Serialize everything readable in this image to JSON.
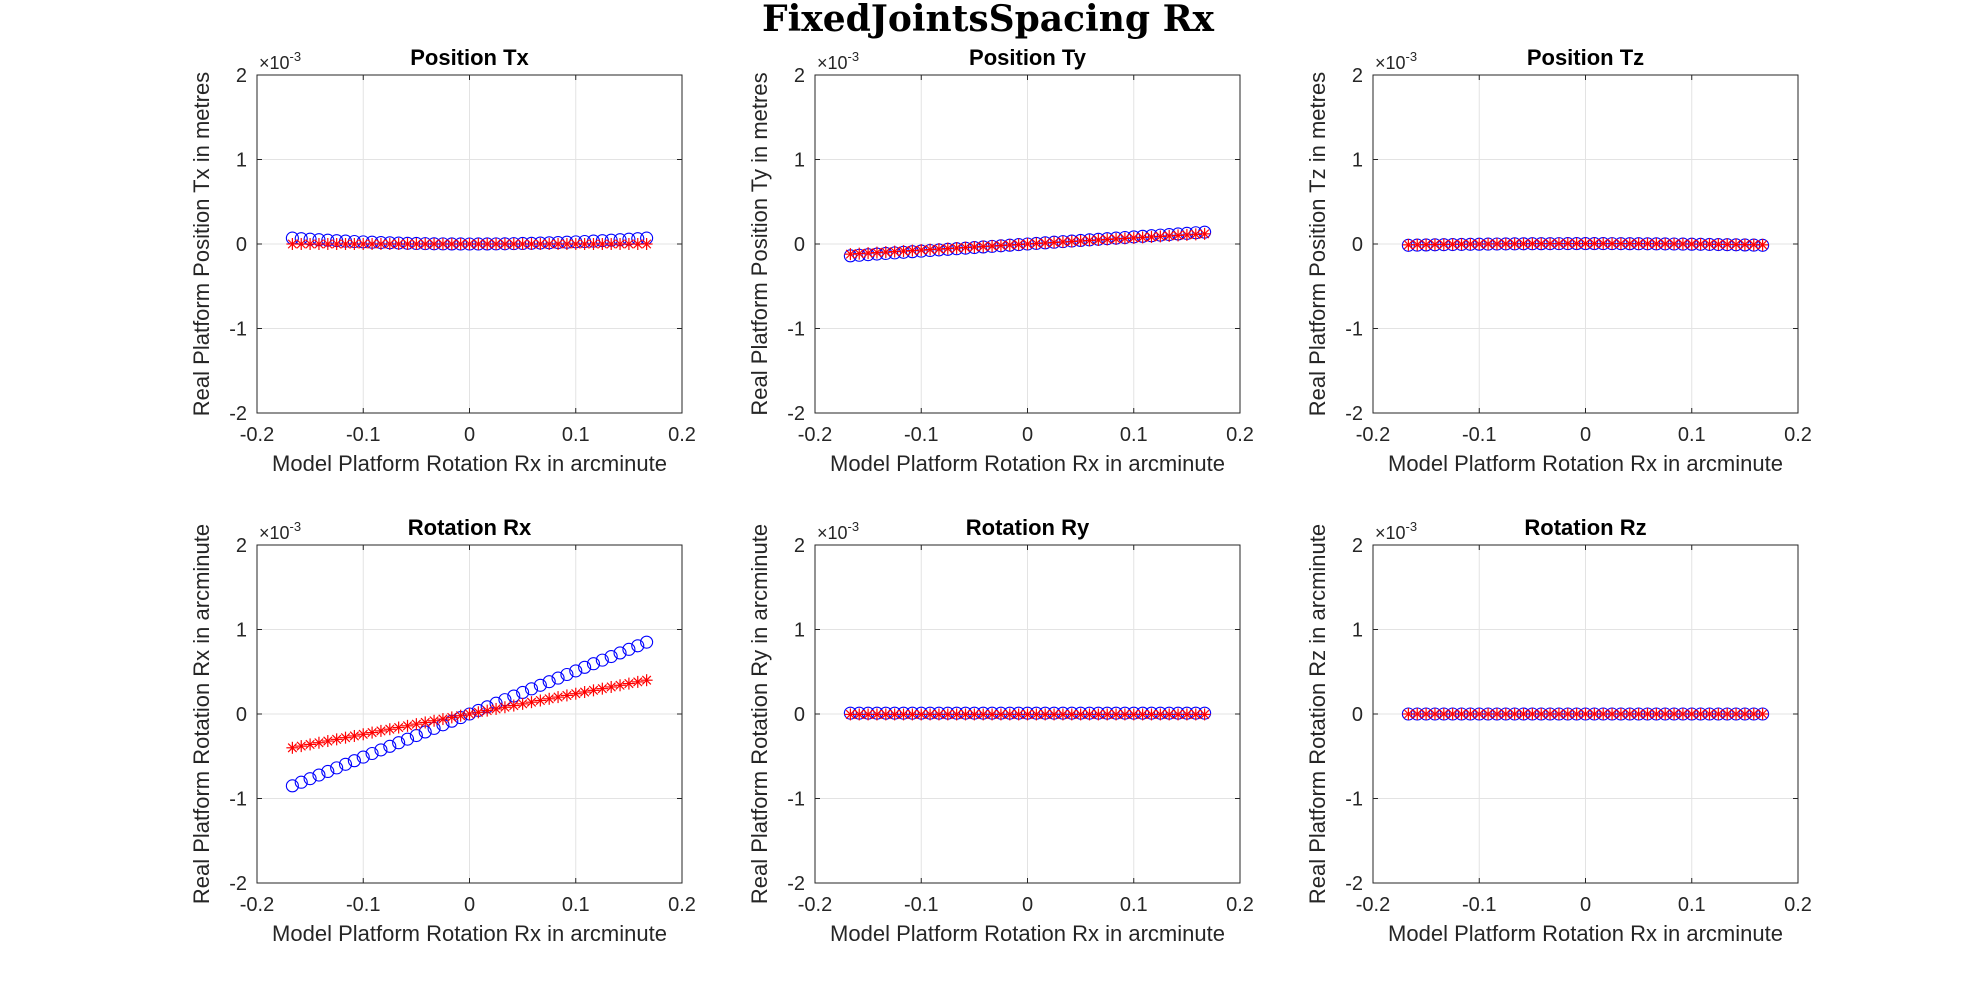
{
  "figure": {
    "title": "FixedJointsSpacing Rx"
  },
  "colors": {
    "model": "#0000ff",
    "real": "#ff0000",
    "grid": "#e3e3e3",
    "axis": "#262626"
  },
  "chart_data": [
    {
      "type": "scatter",
      "title": "Position Tx",
      "xlabel": "Model Platform Rotation Rx in arcminute",
      "ylabel": "Real Platform Position Tx in metres",
      "xlim": [
        -0.2,
        0.2
      ],
      "ylim": [
        -2,
        2
      ],
      "y_exponent": "-3",
      "xticks": [
        "-0.2",
        "-0.1",
        "0",
        "0.1",
        "0.2"
      ],
      "yticks": [
        "-2",
        "-1",
        "0",
        "1",
        "2"
      ],
      "grid": true,
      "x_range": [
        -0.1667,
        0.1667
      ],
      "points": 41,
      "series": [
        {
          "marker": "circle",
          "color": "#0000ff",
          "shape": "quadratic",
          "at_zero": 0,
          "at_end": 0.07
        },
        {
          "marker": "asterisk",
          "color": "#ff0000",
          "shape": "constant",
          "value": 0
        }
      ]
    },
    {
      "type": "scatter",
      "title": "Position Ty",
      "xlabel": "Model Platform Rotation Rx in arcminute",
      "ylabel": "Real Platform Position Ty in metres",
      "xlim": [
        -0.2,
        0.2
      ],
      "ylim": [
        -2,
        2
      ],
      "y_exponent": "-3",
      "xticks": [
        "-0.2",
        "-0.1",
        "0",
        "0.1",
        "0.2"
      ],
      "yticks": [
        "-2",
        "-1",
        "0",
        "1",
        "2"
      ],
      "grid": true,
      "x_range": [
        -0.1667,
        0.1667
      ],
      "points": 41,
      "series": [
        {
          "marker": "circle",
          "color": "#0000ff",
          "shape": "linear",
          "at_zero": 0,
          "at_end": 0.14
        },
        {
          "marker": "asterisk",
          "color": "#ff0000",
          "shape": "linear",
          "at_zero": 0,
          "at_end": 0.12
        }
      ]
    },
    {
      "type": "scatter",
      "title": "Position Tz",
      "xlabel": "Model Platform Rotation Rx in arcminute",
      "ylabel": "Real Platform Position Tz in metres",
      "xlim": [
        -0.2,
        0.2
      ],
      "ylim": [
        -2,
        2
      ],
      "y_exponent": "-3",
      "xticks": [
        "-0.2",
        "-0.1",
        "0",
        "0.1",
        "0.2"
      ],
      "yticks": [
        "-2",
        "-1",
        "0",
        "1",
        "2"
      ],
      "grid": true,
      "x_range": [
        -0.1667,
        0.1667
      ],
      "points": 41,
      "series": [
        {
          "marker": "circle",
          "color": "#0000ff",
          "shape": "quadratic",
          "at_zero": 0.005,
          "at_end": -0.015
        },
        {
          "marker": "asterisk",
          "color": "#ff0000",
          "shape": "quadratic",
          "at_zero": 0.005,
          "at_end": -0.01
        }
      ]
    },
    {
      "type": "scatter",
      "title": "Rotation Rx",
      "xlabel": "Model Platform Rotation Rx in arcminute",
      "ylabel": "Real Platform Rotation Rx in arcminute",
      "xlim": [
        -0.2,
        0.2
      ],
      "ylim": [
        -2,
        2
      ],
      "y_exponent": "-3",
      "xticks": [
        "-0.2",
        "-0.1",
        "0",
        "0.1",
        "0.2"
      ],
      "yticks": [
        "-2",
        "-1",
        "0",
        "1",
        "2"
      ],
      "grid": true,
      "x_range": [
        -0.1667,
        0.1667
      ],
      "points": 41,
      "series": [
        {
          "marker": "circle",
          "color": "#0000ff",
          "shape": "linear",
          "at_zero": 0,
          "at_end": 0.85
        },
        {
          "marker": "asterisk",
          "color": "#ff0000",
          "shape": "linear",
          "at_zero": 0,
          "at_end": 0.4
        }
      ]
    },
    {
      "type": "scatter",
      "title": "Rotation Ry",
      "xlabel": "Model Platform Rotation Rx in arcminute",
      "ylabel": "Real Platform Rotation Ry in arcminute",
      "xlim": [
        -0.2,
        0.2
      ],
      "ylim": [
        -2,
        2
      ],
      "y_exponent": "-3",
      "xticks": [
        "-0.2",
        "-0.1",
        "0",
        "0.1",
        "0.2"
      ],
      "yticks": [
        "-2",
        "-1",
        "0",
        "1",
        "2"
      ],
      "grid": true,
      "x_range": [
        -0.1667,
        0.1667
      ],
      "points": 41,
      "series": [
        {
          "marker": "circle",
          "color": "#0000ff",
          "shape": "constant",
          "value": 0.01
        },
        {
          "marker": "asterisk",
          "color": "#ff0000",
          "shape": "constant",
          "value": -0.005
        }
      ]
    },
    {
      "type": "scatter",
      "title": "Rotation Rz",
      "xlabel": "Model Platform Rotation Rx in arcminute",
      "ylabel": "Real Platform Rotation Rz in arcminute",
      "xlim": [
        -0.2,
        0.2
      ],
      "ylim": [
        -2,
        2
      ],
      "y_exponent": "-3",
      "xticks": [
        "-0.2",
        "-0.1",
        "0",
        "0.1",
        "0.2"
      ],
      "yticks": [
        "-2",
        "-1",
        "0",
        "1",
        "2"
      ],
      "grid": true,
      "x_range": [
        -0.1667,
        0.1667
      ],
      "points": 41,
      "series": [
        {
          "marker": "circle",
          "color": "#0000ff",
          "shape": "constant",
          "value": 0
        },
        {
          "marker": "asterisk",
          "color": "#ff0000",
          "shape": "constant",
          "value": 0
        }
      ]
    }
  ]
}
